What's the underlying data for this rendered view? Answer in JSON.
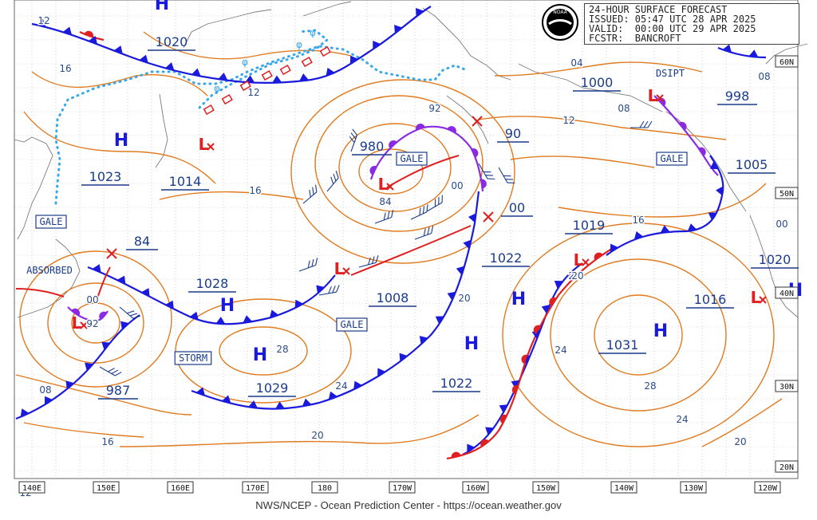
{
  "header": {
    "line1": "24-HOUR SURFACE FORECAST",
    "line2": "ISSUED: 05:47 UTC 28 APR 2025",
    "line3": "VALID:  00:00 UTC 29 APR 2025",
    "line4": "FCSTR:  BANCROFT"
  },
  "logo_text": "NOAA",
  "footer": "NWS/NCEP - Ocean Prediction Center - https://ocean.weather.gov",
  "lon_labels": [
    "140E",
    "150E",
    "160E",
    "170E",
    "180",
    "170W",
    "160W",
    "150W",
    "140W",
    "130W",
    "120W"
  ],
  "lat_labels": [
    "50N",
    "40N",
    "30N",
    "20N",
    "60N"
  ],
  "highs": [
    "H",
    "H",
    "H",
    "H",
    "H",
    "H",
    "H",
    "H"
  ],
  "lows": [
    "L",
    "L",
    "L",
    "L",
    "L",
    "L",
    "L"
  ],
  "pressure_boxes": [
    "1020",
    "1023",
    "1014",
    "1028",
    "1029",
    "987",
    "84",
    "980",
    "90",
    "00",
    "1022",
    "1008",
    "1022",
    "1019",
    "1000",
    "998",
    "1005",
    "1020",
    "1016",
    "1031"
  ],
  "warnings": [
    "GALE",
    "GALE",
    "GALE",
    "GALE",
    "STORM",
    "ABSORBED",
    "DSIPT"
  ],
  "isobar_labels": [
    "12",
    "16",
    "12",
    "16",
    "92",
    "84",
    "00",
    "08",
    "12",
    "04",
    "08",
    "00",
    "16",
    "24",
    "20",
    "20",
    "24",
    "28",
    "24",
    "20",
    "24",
    "28",
    "00",
    "08",
    "16",
    "20",
    "12",
    "92"
  ],
  "colors": {
    "isobar": "#e07b20",
    "cold_front": "#1a1adc",
    "warm_front": "#e02020",
    "occluded_front": "#8a2be2",
    "ice_edge": "#3aa7e8",
    "label_blue": "#1a3c8c",
    "grid": "#b5b5b5"
  }
}
